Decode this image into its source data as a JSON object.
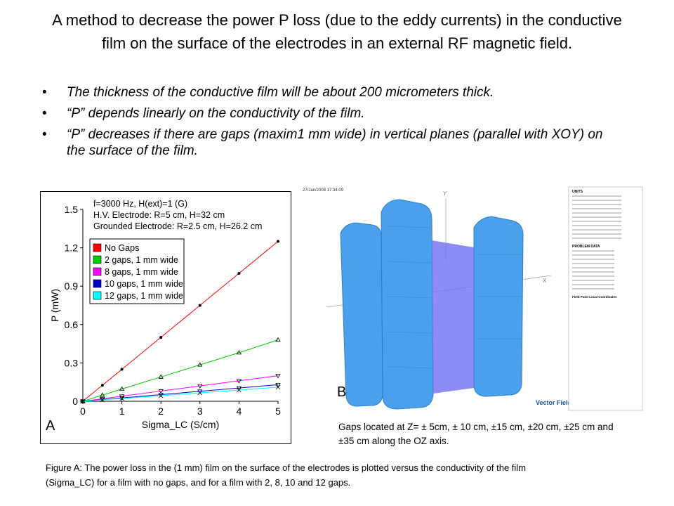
{
  "title": "A method to decrease the power P loss (due to the eddy currents) in the conductive film on the surface of the electrodes in an external RF magnetic field.",
  "bullets": [
    "The thickness of the conductive film will be about 200 micrometers thick.",
    "“P” depends linearly on the conductivity of the film.",
    "“P” decreases if there are gaps (maxim1 mm wide) in vertical planes (parallel with XOY) on the surface of the film."
  ],
  "chart_data": {
    "type": "line",
    "annotations": [
      "f=3000 Hz, H(ext)=1 (G)",
      "H.V. Electrode: R=5 cm, H=32 cm",
      "Grounded Electrode: R=2.5 cm, H=26.2 cm"
    ],
    "xlabel": "Sigma_LC (S/cm)",
    "ylabel": "P (mW)",
    "panel_label": "A",
    "x": [
      0,
      0.5,
      1,
      2,
      3,
      4,
      5
    ],
    "xlim": [
      0,
      5
    ],
    "xticks": [
      0,
      1,
      2,
      3,
      4,
      5
    ],
    "ylim": [
      0,
      1.5
    ],
    "yticks": [
      0,
      0.3,
      0.6,
      0.9,
      1.2,
      1.5
    ],
    "legend": "upper left",
    "series": [
      {
        "name": "No Gaps",
        "color": "#ff0000",
        "marker": "dot",
        "values": [
          0,
          0.125,
          0.25,
          0.5,
          0.75,
          1.0,
          1.25
        ]
      },
      {
        "name": "2 gaps, 1 mm wide",
        "color": "#00cc00",
        "marker": "triangle",
        "values": [
          0,
          0.048,
          0.096,
          0.19,
          0.285,
          0.38,
          0.48
        ]
      },
      {
        "name": "8 gaps, 1 mm wide",
        "color": "#ff00ff",
        "marker": "triangle-down",
        "values": [
          0,
          0.02,
          0.04,
          0.08,
          0.12,
          0.16,
          0.2
        ]
      },
      {
        "name": "10 gaps, 1 mm wide",
        "color": "#0000cc",
        "marker": "triangle-down",
        "values": [
          0,
          0.013,
          0.026,
          0.052,
          0.078,
          0.104,
          0.13
        ]
      },
      {
        "name": "12 gaps, 1 mm wide",
        "color": "#00ffff",
        "marker": "cross",
        "values": [
          0,
          0.011,
          0.022,
          0.044,
          0.066,
          0.088,
          0.11
        ]
      }
    ]
  },
  "figure_b": {
    "label": "B",
    "date": "27/Jan/2008 17:34:09",
    "axis_y": "Y",
    "axis_x": "X",
    "logo": "Vector Fields",
    "panel_heading_1": "UNITS",
    "panel_heading_2": "PROBLEM DATA",
    "panel_heading_3": "Field Point Local Coordinates",
    "caption": "Gaps located at Z= ± 5cm, ± 10 cm, ±15 cm, ±20 cm, ±25 cm and ±35 cm along the OZ axis."
  },
  "caption": "Figure A: The power loss in the (1 mm) film on the surface of the electrodes is plotted versus the conductivity of the film (Sigma_LC) for a film with no gaps, and for a film with 2, 8, 10 and 12 gaps."
}
